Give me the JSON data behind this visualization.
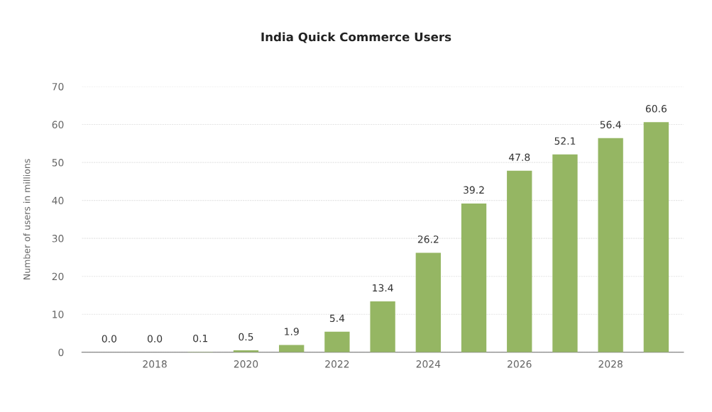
{
  "chart_data": {
    "type": "bar",
    "title": "India Quick Commerce Users",
    "ylabel": "Number of users in millions",
    "categories": [
      null,
      "2018",
      null,
      "2020",
      null,
      "2022",
      null,
      "2024",
      null,
      "2026",
      null,
      "2028",
      null
    ],
    "values": [
      0.0,
      0.0,
      0.1,
      0.5,
      1.9,
      5.4,
      13.4,
      26.2,
      39.2,
      47.8,
      52.1,
      56.4,
      60.6
    ],
    "value_labels": [
      "0.0",
      "0.0",
      "0.1",
      "0.5",
      "1.9",
      "5.4",
      "13.4",
      "26.2",
      "39.2",
      "47.8",
      "52.1",
      "56.4",
      "60.6"
    ],
    "color": "#95b663",
    "ylim": [
      0,
      70
    ],
    "yticks": [
      0,
      10,
      20,
      30,
      40,
      50,
      60,
      70
    ],
    "grid": "y",
    "legend": false
  }
}
